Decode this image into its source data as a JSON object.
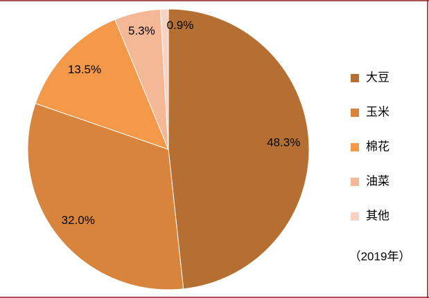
{
  "chart_data": {
    "type": "pie",
    "categories": [
      "大豆",
      "玉米",
      "棉花",
      "油菜",
      "其他"
    ],
    "values": [
      48.3,
      32.0,
      13.5,
      5.3,
      0.9
    ],
    "value_labels": [
      "48.3%",
      "32.0%",
      "13.5%",
      "5.3%",
      "0.9%"
    ],
    "colors": [
      "#b56f33",
      "#d9843d",
      "#f4994a",
      "#f4b896",
      "#f9d2c1"
    ],
    "annotation": "（2019年）"
  }
}
